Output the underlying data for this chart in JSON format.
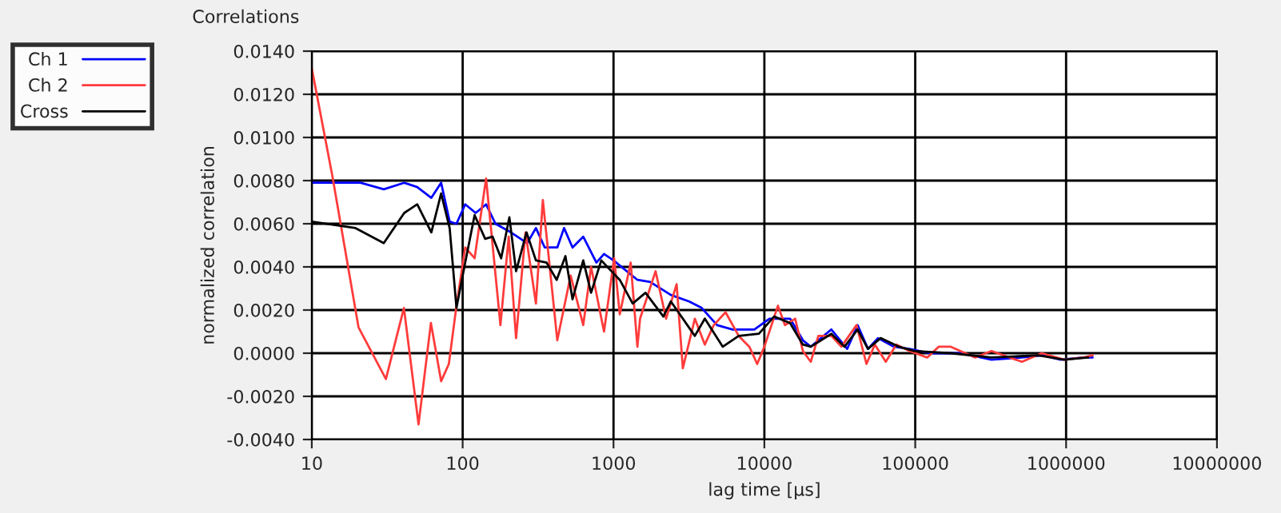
{
  "chart_data": {
    "type": "line",
    "title": "Correlations",
    "xlabel": "lag time [µs]",
    "ylabel": "normalized correlation",
    "log": "x",
    "grid": true,
    "legend": "top left",
    "marker": "none",
    "line_style": "solid",
    "xlim": [
      10,
      10000000
    ],
    "xticks": [
      10,
      100,
      1000,
      10000,
      100000,
      1000000,
      10000000
    ],
    "ylim": [
      -0.004,
      0.014
    ],
    "yticks": [
      {
        "value": -0.004,
        "label": "-0.0040"
      },
      {
        "value": -0.002,
        "label": "-0.0020"
      },
      {
        "value": 0,
        "label": "0.0000"
      },
      {
        "value": 0.002,
        "label": "0.0020"
      },
      {
        "value": 0.004,
        "label": "0.0040"
      },
      {
        "value": 0.006,
        "label": "0.0060"
      },
      {
        "value": 0.008,
        "label": "0.0080"
      },
      {
        "value": 0.01,
        "label": "0.0100"
      },
      {
        "value": 0.012,
        "label": "0.0120"
      },
      {
        "value": 0.014,
        "label": "0.0140"
      }
    ],
    "series": [
      {
        "name": "Ch 1",
        "color": "#0000ff",
        "x": [
          10,
          21,
          30,
          41,
          50,
          62,
          72,
          82,
          91,
          104,
          122,
          143,
          165,
          209,
          268,
          306,
          350,
          424,
          470,
          535,
          630,
          770,
          865,
          1000,
          1440,
          1750,
          2400,
          3170,
          3840,
          4860,
          6150,
          8580,
          10800,
          14800,
          18000,
          20300,
          27800,
          35400,
          41500,
          48600,
          56600,
          72000,
          91500,
          125000,
          200000,
          320000,
          510000,
          700000,
          920000,
          1300000,
          1500000
        ],
        "values": [
          0.0079,
          0.0079,
          0.0076,
          0.0079,
          0.0077,
          0.0072,
          0.0079,
          0.0061,
          0.006,
          0.0069,
          0.0065,
          0.0069,
          0.006,
          0.0056,
          0.0051,
          0.0058,
          0.0049,
          0.0049,
          0.0058,
          0.0049,
          0.0054,
          0.0042,
          0.0046,
          0.0043,
          0.0034,
          0.0033,
          0.0027,
          0.0024,
          0.0021,
          0.0013,
          0.0011,
          0.0011,
          0.0016,
          0.0016,
          0.0006,
          0.0003,
          0.0011,
          0.0002,
          0.0013,
          0.0002,
          0.0007,
          0.0003,
          0.0002,
          0.0,
          0.0,
          -0.0003,
          -0.0002,
          -0.0001,
          -0.0003,
          -0.0002,
          -0.0002
        ]
      },
      {
        "name": "Ch 2",
        "color": "#ff3b3b",
        "x": [
          10,
          13.7,
          20.4,
          31,
          40.8,
          51,
          61.6,
          72,
          81,
          91,
          104,
          120,
          143,
          178,
          202,
          226,
          261,
          306,
          340,
          424,
          520,
          630,
          710,
          865,
          1010,
          1100,
          1300,
          1440,
          1500,
          1900,
          2230,
          2620,
          2880,
          3460,
          4030,
          4620,
          5530,
          6760,
          7950,
          8960,
          10000,
          12300,
          13700,
          16000,
          18000,
          20300,
          22800,
          27800,
          32400,
          40800,
          47500,
          54000,
          63800,
          75000,
          91500,
          120000,
          143000,
          172000,
          250000,
          320000,
          510000,
          690000,
          970000,
          1300000,
          1500000
        ],
        "values": [
          0.0132,
          0.0082,
          0.0012,
          -0.0012,
          0.0021,
          -0.0033,
          0.0014,
          -0.0013,
          -0.0005,
          0.0022,
          0.0049,
          0.0044,
          0.0081,
          0.0013,
          0.0054,
          0.0007,
          0.0056,
          0.0023,
          0.0071,
          0.0006,
          0.0036,
          0.0013,
          0.004,
          0.001,
          0.0044,
          0.0018,
          0.0042,
          0.0003,
          0.0016,
          0.0038,
          0.0016,
          0.0032,
          -0.0007,
          0.0016,
          0.0004,
          0.0013,
          0.0019,
          0.0008,
          0.0003,
          -0.0005,
          0.0003,
          0.0022,
          0.0013,
          0.0016,
          0.0001,
          -0.0004,
          0.0008,
          0.0008,
          0.0003,
          0.0013,
          -0.0005,
          0.0004,
          -0.0004,
          0.0004,
          0.0001,
          -0.0002,
          0.0003,
          0.0003,
          -0.0002,
          0.0001,
          -0.0004,
          0.0,
          -0.0003,
          -0.0002,
          -0.0001
        ]
      },
      {
        "name": "Cross",
        "color": "#000000",
        "x": [
          10,
          19.5,
          30,
          41,
          50,
          62,
          72,
          82,
          91,
          104,
          120,
          141,
          158,
          180,
          204,
          226,
          265,
          306,
          360,
          420,
          480,
          535,
          630,
          710,
          830,
          1000,
          1100,
          1340,
          1630,
          2140,
          2400,
          3460,
          4030,
          5300,
          6760,
          9200,
          11600,
          14800,
          18000,
          20300,
          27800,
          34000,
          41500,
          48600,
          59000,
          78000,
          99000,
          172000,
          320000,
          650000,
          970000,
          1400000
        ],
        "values": [
          0.0061,
          0.0058,
          0.0051,
          0.0065,
          0.0069,
          0.0056,
          0.0074,
          0.0058,
          0.0021,
          0.0042,
          0.0064,
          0.0053,
          0.0054,
          0.0044,
          0.0063,
          0.0038,
          0.0056,
          0.0043,
          0.0042,
          0.0034,
          0.0045,
          0.0025,
          0.0043,
          0.0028,
          0.0043,
          0.0037,
          0.0034,
          0.0023,
          0.0028,
          0.0017,
          0.0024,
          0.0008,
          0.0016,
          0.0003,
          0.0008,
          0.0009,
          0.0017,
          0.0014,
          0.0004,
          0.0003,
          0.0009,
          0.0003,
          0.0011,
          0.0002,
          0.0007,
          0.0003,
          0.0001,
          0.0,
          -0.0002,
          -0.0001,
          -0.0003,
          -0.0002
        ]
      }
    ]
  }
}
